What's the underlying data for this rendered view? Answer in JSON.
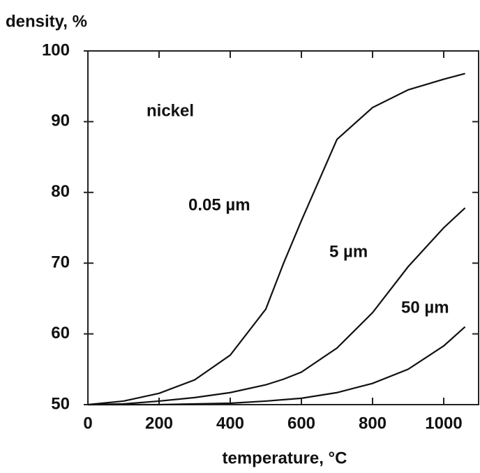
{
  "chart_data": {
    "type": "line",
    "y_label": "density, %",
    "x_label": "temperature, °C",
    "annotation": "nickel",
    "x": [
      0,
      100,
      200,
      300,
      400,
      500,
      550,
      600,
      700,
      800,
      900,
      1000,
      1060
    ],
    "series": [
      {
        "name": "0.05 µm",
        "color": "#111",
        "values": [
          50,
          50.5,
          51.6,
          53.5,
          57,
          63.5,
          70,
          76,
          87.5,
          92,
          94.5,
          96,
          96.8
        ]
      },
      {
        "name": "5 µm",
        "color": "#111",
        "values": [
          50,
          50.1,
          50.5,
          51,
          51.7,
          52.8,
          53.6,
          54.6,
          58,
          63,
          69.5,
          75,
          77.8
        ]
      },
      {
        "name": "50 µm",
        "color": "#111",
        "values": [
          50,
          50,
          50,
          50.1,
          50.2,
          50.5,
          50.7,
          50.9,
          51.7,
          53,
          55,
          58.3,
          61
        ]
      }
    ],
    "xlim": [
      0,
      1100
    ],
    "ylim": [
      50,
      100
    ],
    "xticks": [
      0,
      200,
      400,
      600,
      800,
      1000
    ],
    "yticks": [
      50,
      60,
      70,
      80,
      90,
      100
    ]
  }
}
